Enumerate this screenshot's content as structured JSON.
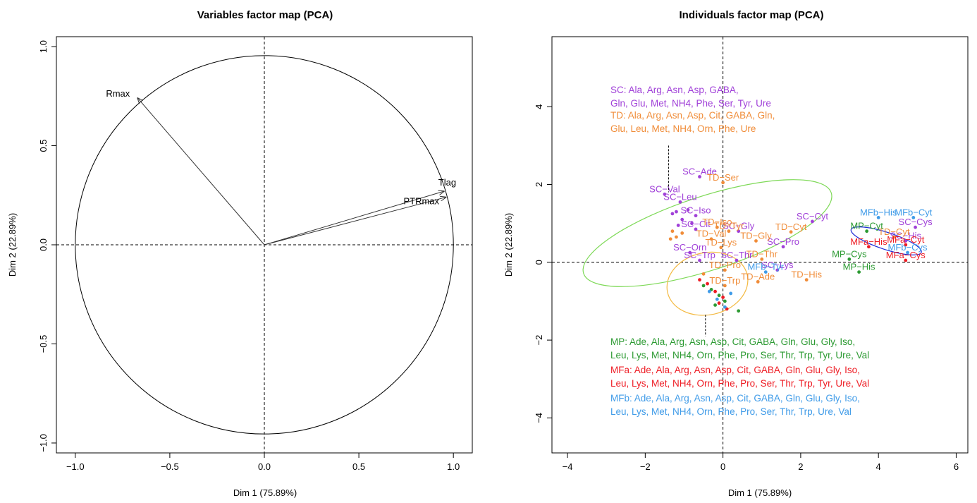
{
  "colors": {
    "SC": "#a040d8",
    "TD": "#f08c38",
    "MP": "#2c9a32",
    "MFa": "#ee1c24",
    "MFb": "#3f9be8",
    "ellipse_green": "#7ed957",
    "ellipse_orange": "#f3b941",
    "ellipse_blue": "#1f2bd6"
  },
  "chart_data": [
    {
      "type": "scatter",
      "subtype": "correlation-circle",
      "title": "Variables factor map (PCA)",
      "xlabel": "Dim 1 (75.89%)",
      "ylabel": "Dim 2 (22.89%)",
      "xlim": [
        -1.1,
        1.1
      ],
      "ylim": [
        -1.05,
        1.05
      ],
      "xticks": [
        -1.0,
        -0.5,
        0.0,
        0.5,
        1.0
      ],
      "xtick_labels": [
        "−1.0",
        "−0.5",
        "0.0",
        "0.5",
        "1.0"
      ],
      "yticks": [
        -1.0,
        -0.5,
        0.0,
        0.5,
        1.0
      ],
      "ytick_labels": [
        "−1.0",
        "−0.5",
        "0.0",
        "0.5",
        "1.0"
      ],
      "grid": false,
      "variables": [
        {
          "name": "Rmax",
          "x": -0.67,
          "y": 0.74
        },
        {
          "name": "Tlag",
          "x": 0.95,
          "y": 0.27
        },
        {
          "name": "PTRmax",
          "x": 0.96,
          "y": 0.24
        }
      ]
    },
    {
      "type": "scatter",
      "title": "Individuals factor map (PCA)",
      "xlabel": "Dim 1 (75.89%)",
      "ylabel": "Dim 2 (22.89%)",
      "xlim": [
        -4.4,
        6.3
      ],
      "ylim": [
        -4.9,
        5.8
      ],
      "xticks": [
        -4,
        -2,
        0,
        2,
        4,
        6
      ],
      "xtick_labels": [
        "−4",
        "−2",
        "0",
        "2",
        "4",
        "6"
      ],
      "yticks": [
        -4,
        -2,
        0,
        2,
        4
      ],
      "ytick_labels": [
        "−4",
        "−2",
        "0",
        "2",
        "4"
      ],
      "grid": false,
      "series": [
        {
          "name": "SC",
          "points": [
            {
              "x": -1.5,
              "y": 1.75,
              "label": "SC−Val"
            },
            {
              "x": -1.1,
              "y": 1.55,
              "label": "SC−Leu"
            },
            {
              "x": -0.7,
              "y": 1.2,
              "label": "SC−Iso"
            },
            {
              "x": -0.6,
              "y": 2.2,
              "label": "SC−Ade"
            },
            {
              "x": -0.7,
              "y": 0.85,
              "label": "SC−Cit"
            },
            {
              "x": 0.4,
              "y": 0.8,
              "label": "SC−Gly"
            },
            {
              "x": 2.3,
              "y": 1.05,
              "label": "SC−Cyt"
            },
            {
              "x": 1.55,
              "y": 0.4,
              "label": "SC−Pro"
            },
            {
              "x": -0.85,
              "y": 0.25,
              "label": "SC−Orn"
            },
            {
              "x": -0.6,
              "y": 0.05,
              "label": "SC−Trp"
            },
            {
              "x": 0.35,
              "y": 0.05,
              "label": "SC−Thr"
            },
            {
              "x": 1.4,
              "y": -0.2,
              "label": "SC−Lys"
            },
            {
              "x": 4.95,
              "y": 0.9,
              "label": "SC−Cys"
            },
            {
              "x": 4.7,
              "y": 0.55,
              "label": "SC−His"
            },
            {
              "x": -1.2,
              "y": 1.3
            },
            {
              "x": -0.9,
              "y": 1.35
            },
            {
              "x": -1.05,
              "y": 1.1
            },
            {
              "x": -1.3,
              "y": 1.25
            },
            {
              "x": -0.8,
              "y": 1.0
            },
            {
              "x": -1.15,
              "y": 0.95
            }
          ]
        },
        {
          "name": "TD",
          "points": [
            {
              "x": 0.0,
              "y": 2.05,
              "label": "TD−Ser"
            },
            {
              "x": -0.15,
              "y": 0.9,
              "label": "TD−Iso"
            },
            {
              "x": 0.15,
              "y": 0.8,
              "label": "TD−Tyr"
            },
            {
              "x": 1.75,
              "y": 0.78,
              "label": "TD−Cyt"
            },
            {
              "x": -0.3,
              "y": 0.6,
              "label": "TD−Val"
            },
            {
              "x": 0.85,
              "y": 0.55,
              "label": "TD−Gly"
            },
            {
              "x": -0.05,
              "y": 0.38,
              "label": "TD−Lys"
            },
            {
              "x": 1.0,
              "y": 0.08,
              "label": "TD−Thr"
            },
            {
              "x": 0.05,
              "y": -0.2,
              "label": "TD−Pro"
            },
            {
              "x": 0.9,
              "y": -0.5,
              "label": "TD−Ade"
            },
            {
              "x": 0.05,
              "y": -0.6,
              "label": "TD−Trp"
            },
            {
              "x": 2.15,
              "y": -0.45,
              "label": "TD−His"
            },
            {
              "x": 4.4,
              "y": 0.65,
              "label": "TD−Cyt"
            },
            {
              "x": -1.3,
              "y": 0.8
            },
            {
              "x": -1.2,
              "y": 0.65
            },
            {
              "x": -1.05,
              "y": 0.75
            },
            {
              "x": -1.35,
              "y": 0.6
            },
            {
              "x": -0.5,
              "y": -0.3
            }
          ]
        },
        {
          "name": "MP",
          "points": [
            {
              "x": 3.7,
              "y": 0.8,
              "label": "MP−Cyt"
            },
            {
              "x": 3.25,
              "y": 0.08,
              "label": "MP−Cys"
            },
            {
              "x": 3.5,
              "y": -0.25,
              "label": "MP−His"
            },
            {
              "x": -0.3,
              "y": -0.7
            },
            {
              "x": -0.1,
              "y": -0.85
            },
            {
              "x": 0.05,
              "y": -1.0
            },
            {
              "x": -0.5,
              "y": -0.6
            },
            {
              "x": 0.4,
              "y": -1.25
            },
            {
              "x": -0.2,
              "y": -1.1
            }
          ]
        },
        {
          "name": "MFa",
          "points": [
            {
              "x": 4.7,
              "y": 0.45,
              "label": "MFa−Cyt"
            },
            {
              "x": 3.75,
              "y": 0.4,
              "label": "MFa−His"
            },
            {
              "x": 4.7,
              "y": 0.05,
              "label": "MFa−Cys"
            },
            {
              "x": -0.4,
              "y": -0.55
            },
            {
              "x": -0.2,
              "y": -0.75
            },
            {
              "x": 0.0,
              "y": -0.9
            },
            {
              "x": -0.1,
              "y": -1.05
            },
            {
              "x": 0.1,
              "y": -1.2
            },
            {
              "x": -0.6,
              "y": -0.45
            }
          ]
        },
        {
          "name": "MFb",
          "points": [
            {
              "x": 4.0,
              "y": 1.15,
              "label": "MFb−His"
            },
            {
              "x": 4.9,
              "y": 1.15,
              "label": "MFb−Cyt"
            },
            {
              "x": 4.75,
              "y": 0.25,
              "label": "MFb−Cys"
            },
            {
              "x": 1.1,
              "y": -0.25,
              "label": "MFb−Tyr"
            },
            {
              "x": 0.2,
              "y": -0.8
            },
            {
              "x": -0.15,
              "y": -0.95
            },
            {
              "x": 0.05,
              "y": -1.15
            },
            {
              "x": -0.35,
              "y": -0.75
            }
          ]
        }
      ],
      "ellipses": [
        {
          "cx": -0.4,
          "cy": 0.75,
          "rx": 3.35,
          "ry": 0.95,
          "angle_deg": -18,
          "color": "ellipse_green"
        },
        {
          "cx": -0.4,
          "cy": -0.55,
          "rx": 1.05,
          "ry": 0.8,
          "angle_deg": -12,
          "color": "ellipse_orange"
        },
        {
          "cx": 4.2,
          "cy": 0.55,
          "rx": 0.95,
          "ry": 0.22,
          "angle_deg": 18,
          "color": "ellipse_blue"
        }
      ],
      "annotations": [
        {
          "group": "SC",
          "lines": [
            "SC: Ala, Arg, Asn, Asp, GABA,",
            "Gln, Glu, Met, NH4, Phe, Ser, Tyr, Ure"
          ]
        },
        {
          "group": "TD",
          "lines": [
            "TD: Ala, Arg, Asn, Asp, Cit, GABA, Gln,",
            "Glu, Leu, Met, NH4, Orn, Phe, Ure"
          ]
        },
        {
          "group": "MP",
          "lines": [
            "MP: Ade, Ala, Arg, Asn, Asp, Cit, GABA, Gln, Glu, Gly, Iso,",
            "Leu, Lys, Met, NH4, Orn, Phe, Pro, Ser, Thr, Trp, Tyr, Ure, Val"
          ]
        },
        {
          "group": "MFa",
          "lines": [
            "MFa: Ade, Ala, Arg, Asn, Asp, Cit, GABA, Gln, Glu, Gly, Iso,",
            "Leu, Lys, Met, NH4, Orn, Phe, Pro, Ser, Thr, Trp, Tyr, Ure, Val"
          ]
        },
        {
          "group": "MFb",
          "lines": [
            "MFb: Ade, Ala, Arg, Asn, Asp, Cit, GABA, Gln, Glu, Gly, Iso,",
            "Leu, Lys, Met, NH4, Orn, Phe, Pro, Ser, Thr, Trp, Ure, Val"
          ]
        }
      ]
    }
  ]
}
